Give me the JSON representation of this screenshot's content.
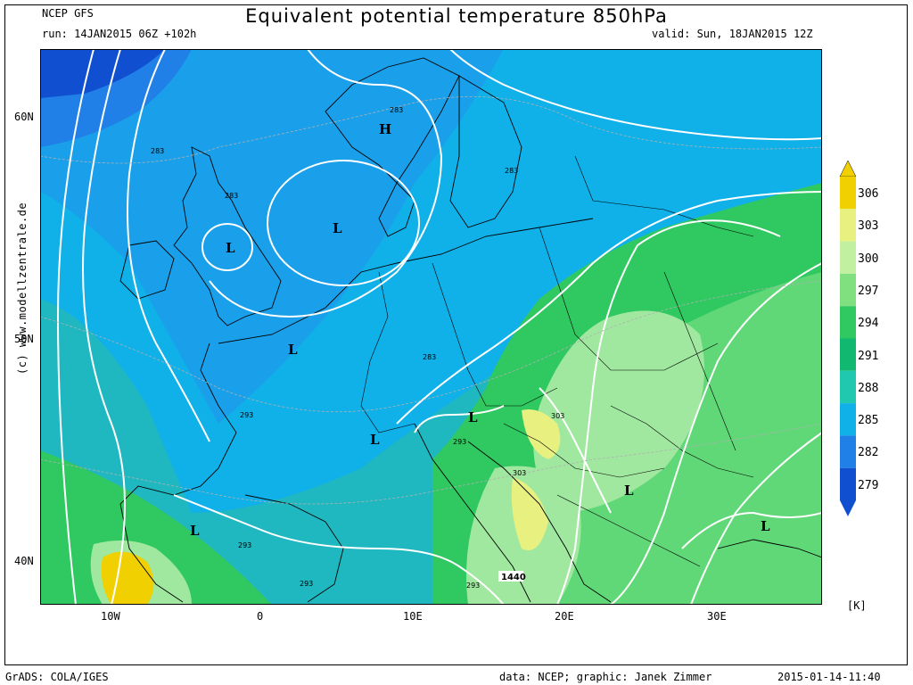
{
  "header": {
    "model": "NCEP GFS",
    "title": "Equivalent potential temperature 850hPa",
    "run": "run: 14JAN2015 06Z +102h",
    "valid": "valid: Sun, 18JAN2015 12Z"
  },
  "axes": {
    "lat_ticks": [
      "60N",
      "50N",
      "40N"
    ],
    "lon_ticks": [
      "10W",
      "0",
      "10E",
      "20E",
      "30E"
    ]
  },
  "colorbar": {
    "levels": [
      "306",
      "303",
      "300",
      "297",
      "294",
      "291",
      "288",
      "285",
      "282",
      "279"
    ],
    "colors": [
      "#f0d000",
      "#e8f080",
      "#c0f0a0",
      "#80e080",
      "#30c860",
      "#10b870",
      "#20c8b0",
      "#10b0e8",
      "#2080e8",
      "#1050d0"
    ],
    "unit": "[K]"
  },
  "map_labels": {
    "pressure_systems": [
      "H",
      "L",
      "L",
      "L",
      "L",
      "L",
      "L",
      "L",
      "L"
    ],
    "contour_labels": [
      "283",
      "283",
      "283",
      "283",
      "283",
      "293",
      "293",
      "293",
      "293",
      "293",
      "303",
      "303",
      "1440"
    ]
  },
  "side_credit": "(c) www.modellzentrale.de",
  "footer": {
    "left": "GrADS: COLA/IGES",
    "center": "data: NCEP; graphic: Janek Zimmer",
    "right": "2015-01-14-11:40"
  }
}
